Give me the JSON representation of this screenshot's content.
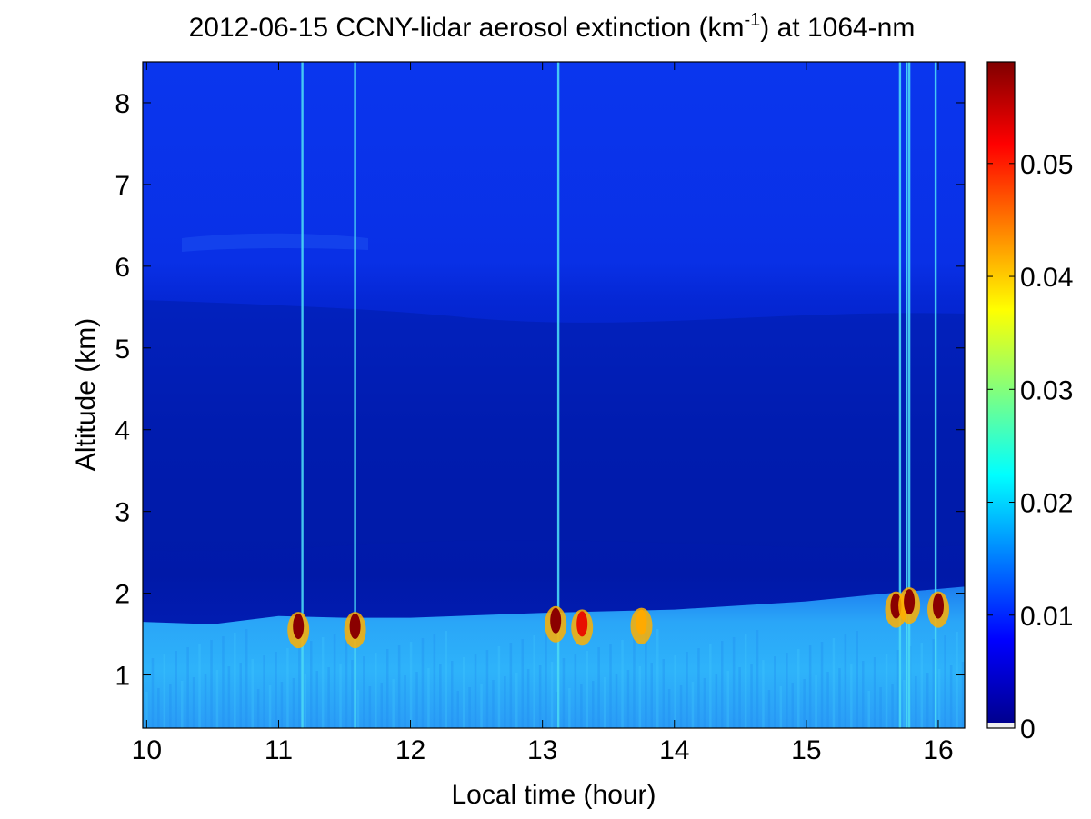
{
  "chart_data": {
    "type": "heatmap",
    "title": {
      "prefix": "2012-06-15 CCNY-lidar aerosol extinction (km",
      "superscript": "-1",
      "suffix": ") at 1064-nm"
    },
    "xlabel": "Local time (hour)",
    "ylabel": "Altitude (km)",
    "xlim": [
      9.97,
      16.2
    ],
    "ylim": [
      0.35,
      8.5
    ],
    "x_ticks": [
      10,
      11,
      12,
      13,
      14,
      15,
      16
    ],
    "x_tick_labels": [
      "10",
      "11",
      "12",
      "13",
      "14",
      "15",
      "16"
    ],
    "y_ticks": [
      1,
      2,
      3,
      4,
      5,
      6,
      7,
      8
    ],
    "y_tick_labels": [
      "1",
      "2",
      "3",
      "4",
      "5",
      "6",
      "7",
      "8"
    ],
    "colorbar": {
      "colormap": "jet",
      "range": [
        0,
        0.059
      ],
      "ticks": [
        0,
        0.01,
        0.02,
        0.03,
        0.04,
        0.05
      ],
      "tick_labels": [
        "0",
        "0.01",
        "0.02",
        "0.03",
        "0.04",
        "0.05"
      ],
      "lowest_color": "#f0f0f0"
    },
    "boundary_layer_top_km": [
      [
        9.97,
        1.65
      ],
      [
        10.5,
        1.62
      ],
      [
        11.0,
        1.72
      ],
      [
        11.5,
        1.7
      ],
      [
        12.0,
        1.7
      ],
      [
        13.0,
        1.76
      ],
      [
        14.0,
        1.8
      ],
      [
        15.0,
        1.9
      ],
      [
        15.5,
        1.98
      ],
      [
        16.2,
        2.08
      ]
    ],
    "cloud_patches": [
      {
        "time": 11.15,
        "altitude_top": 1.75,
        "extinction": 0.059
      },
      {
        "time": 11.58,
        "altitude_top": 1.75,
        "extinction": 0.059
      },
      {
        "time": 13.1,
        "altitude_top": 1.82,
        "extinction": 0.059
      },
      {
        "time": 13.3,
        "altitude_top": 1.78,
        "extinction": 0.05
      },
      {
        "time": 13.75,
        "altitude_top": 1.8,
        "extinction": 0.045
      },
      {
        "time": 15.68,
        "altitude_top": 2.0,
        "extinction": 0.059
      },
      {
        "time": 15.78,
        "altitude_top": 2.05,
        "extinction": 0.059
      },
      {
        "time": 16.0,
        "altitude_top": 2.0,
        "extinction": 0.059
      }
    ],
    "vertical_streaks": [
      11.18,
      11.58,
      13.12,
      15.71,
      15.76,
      15.78,
      15.98
    ],
    "colors": {
      "upper_layer": "#0a31e8",
      "aloft_layer": "#0322c8",
      "residual_layer": "#001aad",
      "boundary_layer": "#2aa0f8"
    }
  }
}
